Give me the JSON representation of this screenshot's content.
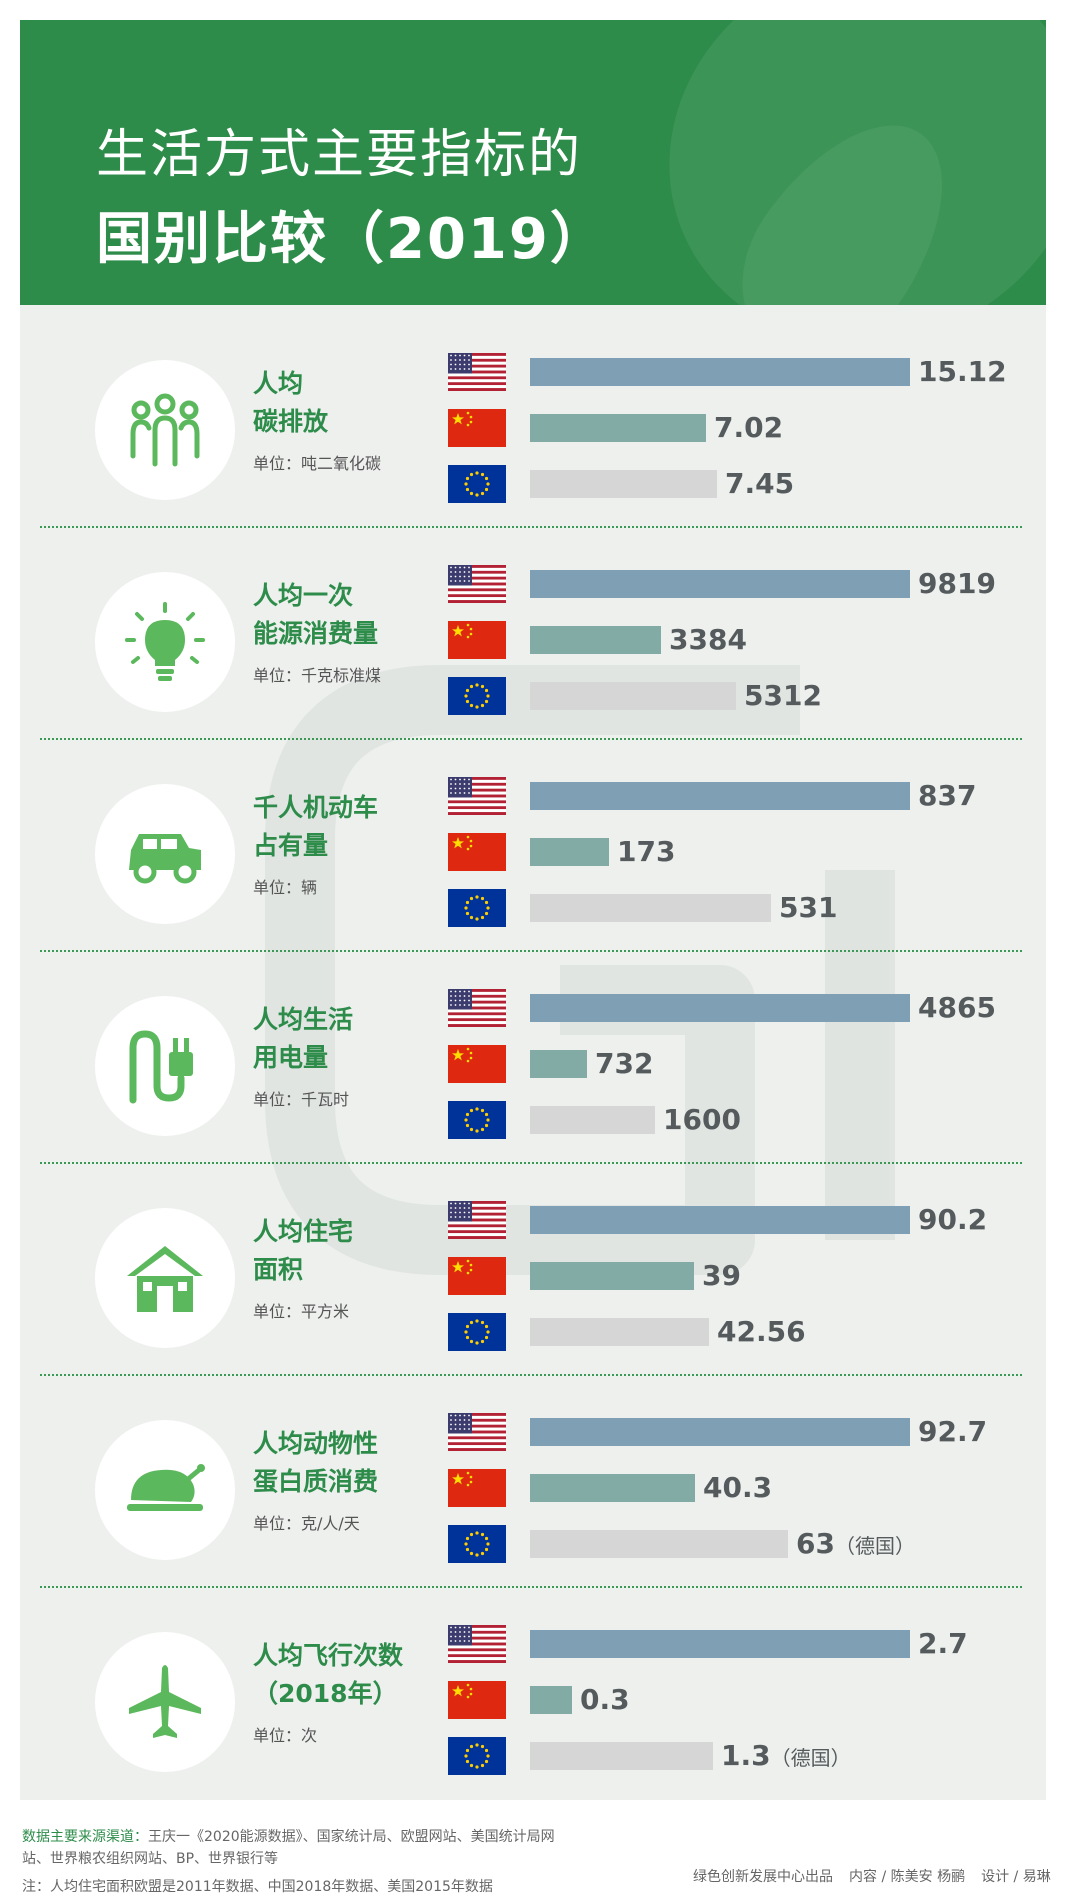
{
  "header": {
    "title_line1": "生活方式主要指标的",
    "title_line2": "国别比较（2019）"
  },
  "flags": [
    "United States",
    "China",
    "European Union"
  ],
  "colors": {
    "header_green": "#2e8c4b",
    "us_bar": "#7f9fb5",
    "china_bar": "#82aba6",
    "eu_bar": "#d6d6d6",
    "icon_green": "#5cb85c"
  },
  "chart_data": {
    "type": "bar",
    "orientation": "horizontal",
    "series": [
      {
        "key": "us",
        "color": "#7f9fb5"
      },
      {
        "key": "china",
        "color": "#82aba6"
      },
      {
        "key": "eu",
        "color": "#d6d6d6"
      }
    ],
    "groups": [
      {
        "icon": "people-icon",
        "label_line1": "人均",
        "label_line2": "碳排放",
        "unit": "单位：吨二氧化碳",
        "values": [
          15.12,
          7.02,
          7.45
        ],
        "value_labels": [
          "15.12",
          "7.02",
          "7.45"
        ],
        "notes": [
          "",
          "",
          ""
        ]
      },
      {
        "icon": "lightbulb-icon",
        "label_line1": "人均一次",
        "label_line2": "能源消费量",
        "unit": "单位：千克标准煤",
        "values": [
          9819,
          3384,
          5312
        ],
        "value_labels": [
          "9819",
          "3384",
          "5312"
        ],
        "notes": [
          "",
          "",
          ""
        ]
      },
      {
        "icon": "car-icon",
        "label_line1": "千人机动车",
        "label_line2": "占有量",
        "unit": "单位：辆",
        "values": [
          837,
          173,
          531
        ],
        "value_labels": [
          "837",
          "173",
          "531"
        ],
        "notes": [
          "",
          "",
          ""
        ]
      },
      {
        "icon": "plug-icon",
        "label_line1": "人均生活",
        "label_line2": "用电量",
        "unit": "单位：千瓦时",
        "values": [
          4865,
          732,
          1600
        ],
        "value_labels": [
          "4865",
          "732",
          "1600"
        ],
        "notes": [
          "",
          "",
          ""
        ]
      },
      {
        "icon": "house-icon",
        "label_line1": "人均住宅",
        "label_line2": "面积",
        "unit": "单位：平方米",
        "values": [
          90.2,
          39,
          42.56
        ],
        "value_labels": [
          "90.2",
          "39",
          "42.56"
        ],
        "notes": [
          "",
          "",
          ""
        ]
      },
      {
        "icon": "roast-chicken-icon",
        "label_line1": "人均动物性",
        "label_line2": "蛋白质消费",
        "unit": "单位：克/人/天",
        "values": [
          92.7,
          40.3,
          63
        ],
        "value_labels": [
          "92.7",
          "40.3",
          "63"
        ],
        "notes": [
          "",
          "",
          "（德国）"
        ]
      },
      {
        "icon": "airplane-icon",
        "label_line1": "人均飞行次数",
        "label_line2": "（2018年）",
        "unit": "单位：次",
        "values": [
          2.7,
          0.3,
          1.3
        ],
        "value_labels": [
          "2.7",
          "0.3",
          "1.3"
        ],
        "notes": [
          "",
          "",
          "（德国）"
        ]
      }
    ]
  },
  "footer": {
    "source_label": "数据主要来源渠道：",
    "source_text": "王庆一《2020能源数据》、国家统计局、欧盟网站、美国统计局网站、世界粮农组织网站、BP、世界银行等",
    "note": "注：人均住宅面积欧盟是2011年数据、中国2018年数据、美国2015年数据",
    "credit_publisher": "绿色创新发展中心出品",
    "credit_content": "内容 / 陈美安 杨鹂",
    "credit_design": "设计 / 易琳"
  }
}
